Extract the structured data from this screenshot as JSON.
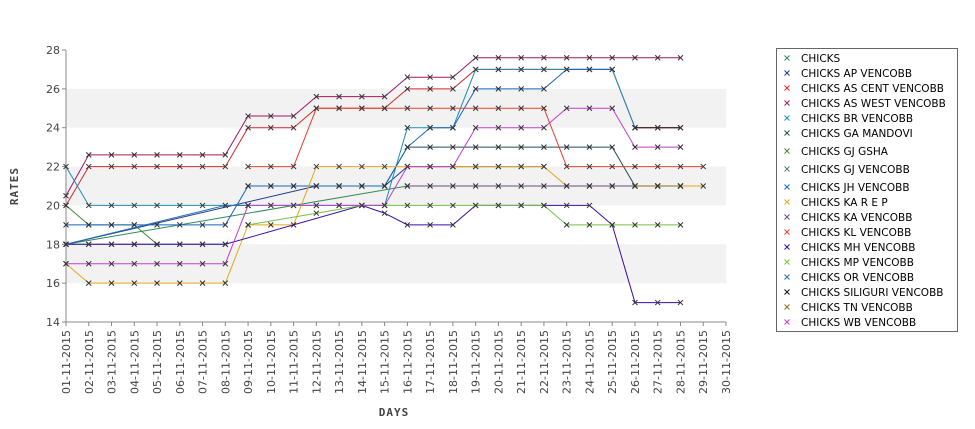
{
  "chart_data": {
    "type": "line",
    "title": "",
    "xlabel": "DAYS",
    "ylabel": "RATES",
    "ylim": [
      14,
      28
    ],
    "yticks": [
      14,
      16,
      18,
      20,
      22,
      24,
      26,
      28
    ],
    "grid": "alternating horizontal bands",
    "legend_position": "right",
    "categories": [
      "01-11-2015",
      "02-11-2015",
      "03-11-2015",
      "04-11-2015",
      "05-11-2015",
      "06-11-2015",
      "07-11-2015",
      "08-11-2015",
      "09-11-2015",
      "10-11-2015",
      "11-11-2015",
      "12-11-2015",
      "13-11-2015",
      "14-11-2015",
      "15-11-2015",
      "16-11-2015",
      "17-11-2015",
      "18-11-2015",
      "19-11-2015",
      "20-11-2015",
      "21-11-2015",
      "22-11-2015",
      "23-11-2015",
      "24-11-2015",
      "25-11-2015",
      "26-11-2015",
      "27-11-2015",
      "28-11-2015",
      "29-11-2015",
      "30-11-2015"
    ],
    "series": [
      {
        "name": "CHICKS",
        "color": "#2e8b57",
        "points": [
          [
            0,
            18
          ],
          [
            15,
            21
          ]
        ]
      },
      {
        "name": "CHICKS AP VENCOBB",
        "color": "#1f3a93",
        "points": [
          [
            0,
            18
          ],
          [
            11,
            21
          ],
          [
            12,
            21
          ],
          [
            13,
            21
          ],
          [
            14,
            21
          ],
          [
            15,
            22
          ],
          [
            16,
            22
          ],
          [
            17,
            22
          ],
          [
            18,
            22
          ],
          [
            19,
            22
          ],
          [
            20,
            22
          ],
          [
            21,
            22
          ]
        ]
      },
      {
        "name": "CHICKS AS CENT VENCOBB",
        "color": "#d62728",
        "points": [
          [
            0,
            20
          ],
          [
            1,
            22
          ],
          [
            2,
            22
          ],
          [
            3,
            22
          ],
          [
            4,
            22
          ],
          [
            5,
            22
          ],
          [
            6,
            22
          ],
          [
            7,
            22
          ],
          [
            8,
            24
          ],
          [
            9,
            24
          ],
          [
            10,
            24
          ],
          [
            11,
            25
          ],
          [
            12,
            25
          ],
          [
            13,
            25
          ],
          [
            14,
            25
          ],
          [
            15,
            26
          ],
          [
            16,
            26
          ],
          [
            17,
            26
          ],
          [
            18,
            27
          ],
          [
            19,
            27
          ],
          [
            20,
            27
          ],
          [
            21,
            27
          ],
          [
            22,
            27
          ],
          [
            23,
            27
          ],
          [
            24,
            27
          ],
          [
            25,
            24
          ],
          [
            26,
            24
          ],
          [
            27,
            24
          ]
        ]
      },
      {
        "name": "CHICKS AS WEST VENCOBB",
        "color": "#a0185e",
        "points": [
          [
            0,
            20.5
          ],
          [
            1,
            22.6
          ],
          [
            2,
            22.6
          ],
          [
            3,
            22.6
          ],
          [
            4,
            22.6
          ],
          [
            5,
            22.6
          ],
          [
            6,
            22.6
          ],
          [
            7,
            22.6
          ],
          [
            8,
            24.6
          ],
          [
            9,
            24.6
          ],
          [
            10,
            24.6
          ],
          [
            11,
            25.6
          ],
          [
            12,
            25.6
          ],
          [
            13,
            25.6
          ],
          [
            14,
            25.6
          ],
          [
            15,
            26.6
          ],
          [
            16,
            26.6
          ],
          [
            17,
            26.6
          ],
          [
            18,
            27.6
          ],
          [
            19,
            27.6
          ],
          [
            20,
            27.6
          ],
          [
            21,
            27.6
          ],
          [
            22,
            27.6
          ],
          [
            23,
            27.6
          ],
          [
            24,
            27.6
          ],
          [
            25,
            27.6
          ],
          [
            26,
            27.6
          ],
          [
            27,
            27.6
          ]
        ]
      },
      {
        "name": "CHICKS BR VENCOBB",
        "color": "#1a8fb5",
        "points": [
          [
            0,
            22
          ],
          [
            1,
            20
          ],
          [
            2,
            20
          ],
          [
            3,
            20
          ],
          [
            4,
            20
          ],
          [
            5,
            20
          ],
          [
            6,
            20
          ],
          [
            7,
            20
          ],
          [
            8,
            20
          ],
          [
            9,
            20
          ],
          [
            10,
            20
          ],
          [
            11,
            20
          ],
          [
            12,
            20
          ],
          [
            13,
            20
          ],
          [
            14,
            20
          ],
          [
            15,
            24
          ],
          [
            16,
            24
          ],
          [
            17,
            24
          ],
          [
            18,
            27
          ],
          [
            19,
            27
          ],
          [
            20,
            27
          ],
          [
            21,
            27
          ],
          [
            22,
            27
          ],
          [
            23,
            27
          ],
          [
            24,
            27
          ],
          [
            25,
            24
          ]
        ]
      },
      {
        "name": "CHICKS GA MANDOVI",
        "color": "#1d4d4f",
        "points": [
          [
            8,
            21
          ],
          [
            9,
            21
          ],
          [
            10,
            21
          ],
          [
            11,
            21
          ],
          [
            12,
            21
          ],
          [
            13,
            21
          ],
          [
            14,
            21
          ],
          [
            15,
            23
          ],
          [
            16,
            23
          ],
          [
            17,
            23
          ],
          [
            18,
            23
          ],
          [
            19,
            23
          ],
          [
            20,
            23
          ],
          [
            21,
            23
          ],
          [
            22,
            23
          ],
          [
            23,
            23
          ],
          [
            24,
            23
          ],
          [
            25,
            21
          ],
          [
            26,
            21
          ],
          [
            27,
            21
          ]
        ]
      },
      {
        "name": "CHICKS GJ GSHA",
        "color": "#3c8d2f",
        "points": [
          [
            0,
            20
          ],
          [
            1,
            19
          ],
          [
            2,
            19
          ],
          [
            3,
            19
          ],
          [
            4,
            18
          ]
        ]
      },
      {
        "name": "CHICKS GJ VENCOBB",
        "color": "#5a7a7a",
        "points": [
          [
            0,
            18
          ],
          [
            1,
            18
          ],
          [
            2,
            18
          ],
          [
            3,
            18
          ],
          [
            4,
            18
          ],
          [
            5,
            18
          ],
          [
            6,
            18
          ],
          [
            7,
            18
          ]
        ]
      },
      {
        "name": "CHICKS JH VENCOBB",
        "color": "#1565c0",
        "points": [
          [
            0,
            19
          ],
          [
            1,
            19
          ],
          [
            2,
            19
          ],
          [
            3,
            19
          ],
          [
            4,
            19
          ],
          [
            5,
            19
          ],
          [
            6,
            19
          ],
          [
            7,
            19
          ],
          [
            8,
            21
          ],
          [
            9,
            21
          ],
          [
            10,
            21
          ],
          [
            11,
            21
          ],
          [
            12,
            21
          ],
          [
            13,
            21
          ],
          [
            14,
            21
          ],
          [
            15,
            23
          ],
          [
            16,
            24
          ],
          [
            17,
            24
          ],
          [
            18,
            26
          ],
          [
            19,
            26
          ],
          [
            20,
            26
          ],
          [
            21,
            26
          ],
          [
            22,
            27
          ],
          [
            23,
            27
          ],
          [
            24,
            27
          ]
        ]
      },
      {
        "name": "CHICKS KA R E P",
        "color": "#e6a817",
        "points": [
          [
            0,
            17
          ],
          [
            1,
            16
          ],
          [
            2,
            16
          ],
          [
            3,
            16
          ],
          [
            4,
            16
          ],
          [
            5,
            16
          ],
          [
            6,
            16
          ],
          [
            7,
            16
          ],
          [
            8,
            19
          ],
          [
            9,
            19
          ],
          [
            10,
            19
          ],
          [
            11,
            22
          ],
          [
            12,
            22
          ],
          [
            13,
            22
          ],
          [
            14,
            22
          ],
          [
            15,
            22
          ],
          [
            16,
            22
          ],
          [
            17,
            22
          ],
          [
            18,
            22
          ],
          [
            19,
            22
          ],
          [
            20,
            22
          ],
          [
            21,
            22
          ],
          [
            22,
            21
          ],
          [
            23,
            21
          ],
          [
            24,
            21
          ],
          [
            25,
            21
          ],
          [
            26,
            21
          ],
          [
            27,
            21
          ],
          [
            28,
            21
          ]
        ]
      },
      {
        "name": "CHICKS KA VENCOBB",
        "color": "#6b4a7a",
        "points": [
          [
            15,
            21
          ],
          [
            16,
            21
          ],
          [
            17,
            21
          ],
          [
            18,
            21
          ],
          [
            19,
            21
          ],
          [
            20,
            21
          ],
          [
            21,
            21
          ],
          [
            22,
            21
          ],
          [
            23,
            21
          ],
          [
            24,
            21
          ],
          [
            25,
            21
          ],
          [
            26,
            21
          ],
          [
            27,
            21
          ]
        ]
      },
      {
        "name": "CHICKS KL VENCOBB",
        "color": "#e8402a",
        "points": [
          [
            8,
            22
          ],
          [
            9,
            22
          ],
          [
            10,
            22
          ],
          [
            11,
            25
          ],
          [
            12,
            25
          ],
          [
            13,
            25
          ],
          [
            14,
            25
          ],
          [
            15,
            25
          ],
          [
            16,
            25
          ],
          [
            17,
            25
          ],
          [
            18,
            25
          ],
          [
            19,
            25
          ],
          [
            20,
            25
          ],
          [
            21,
            25
          ],
          [
            22,
            22
          ],
          [
            23,
            22
          ],
          [
            24,
            22
          ],
          [
            25,
            22
          ],
          [
            26,
            22
          ],
          [
            27,
            22
          ],
          [
            28,
            22
          ]
        ]
      },
      {
        "name": "CHICKS MH VENCOBB",
        "color": "#3a0ca3",
        "points": [
          [
            0,
            18
          ],
          [
            1,
            18
          ],
          [
            2,
            18
          ],
          [
            3,
            18
          ],
          [
            4,
            18
          ],
          [
            5,
            18
          ],
          [
            6,
            18
          ],
          [
            7,
            18
          ],
          [
            13,
            20
          ],
          [
            14,
            19.6
          ],
          [
            15,
            19
          ],
          [
            16,
            19
          ],
          [
            17,
            19
          ],
          [
            18,
            20
          ],
          [
            19,
            20
          ],
          [
            20,
            20
          ],
          [
            21,
            20
          ],
          [
            22,
            20
          ],
          [
            23,
            20
          ],
          [
            24,
            19
          ],
          [
            25,
            15
          ],
          [
            26,
            15
          ],
          [
            27,
            15
          ]
        ]
      },
      {
        "name": "CHICKS MP VENCOBB",
        "color": "#76c043",
        "points": [
          [
            8,
            19
          ],
          [
            11,
            19.6
          ],
          [
            13,
            20
          ],
          [
            14,
            20
          ],
          [
            15,
            20
          ],
          [
            16,
            20
          ],
          [
            17,
            20
          ],
          [
            18,
            20
          ],
          [
            19,
            20
          ],
          [
            20,
            20
          ],
          [
            21,
            20
          ],
          [
            22,
            19
          ],
          [
            23,
            19
          ],
          [
            24,
            19
          ],
          [
            25,
            19
          ],
          [
            26,
            19
          ],
          [
            27,
            19
          ]
        ]
      },
      {
        "name": "CHICKS OR VENCOBB",
        "color": "#2a6fb0",
        "points": [
          [
            0,
            18
          ],
          [
            7,
            20
          ],
          [
            8,
            20
          ]
        ]
      },
      {
        "name": "CHICKS SILIGURI VENCOBB",
        "color": "#111111",
        "points": [
          [
            25,
            24
          ],
          [
            26,
            24
          ],
          [
            27,
            24
          ]
        ]
      },
      {
        "name": "CHICKS TN VENCOBB",
        "color": "#8a6d1e",
        "points": [
          [
            25,
            21
          ],
          [
            26,
            21
          ],
          [
            27,
            21
          ]
        ]
      },
      {
        "name": "CHICKS WB VENCOBB",
        "color": "#c13fc8",
        "points": [
          [
            0,
            17
          ],
          [
            1,
            17
          ],
          [
            2,
            17
          ],
          [
            3,
            17
          ],
          [
            4,
            17
          ],
          [
            5,
            17
          ],
          [
            6,
            17
          ],
          [
            7,
            17
          ],
          [
            8,
            20
          ],
          [
            9,
            20
          ],
          [
            10,
            20
          ],
          [
            11,
            20
          ],
          [
            12,
            20
          ],
          [
            13,
            20
          ],
          [
            14,
            20
          ],
          [
            15,
            22
          ],
          [
            16,
            22
          ],
          [
            17,
            22
          ],
          [
            18,
            24
          ],
          [
            19,
            24
          ],
          [
            20,
            24
          ],
          [
            21,
            24
          ],
          [
            22,
            25
          ],
          [
            23,
            25
          ],
          [
            24,
            25
          ],
          [
            25,
            23
          ],
          [
            26,
            23
          ],
          [
            27,
            23
          ]
        ]
      }
    ]
  }
}
